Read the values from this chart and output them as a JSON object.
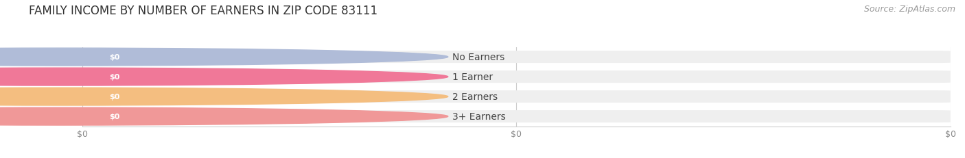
{
  "title": "FAMILY INCOME BY NUMBER OF EARNERS IN ZIP CODE 83111",
  "source_text": "Source: ZipAtlas.com",
  "categories": [
    "No Earners",
    "1 Earner",
    "2 Earners",
    "3+ Earners"
  ],
  "values": [
    0,
    0,
    0,
    0
  ],
  "bar_colors": [
    "#b0bcd8",
    "#f07898",
    "#f4be80",
    "#f09898"
  ],
  "background_color": "#ffffff",
  "bar_bg_color": "#efefef",
  "title_fontsize": 12,
  "source_fontsize": 9,
  "label_fontsize": 10,
  "value_label": "$0"
}
